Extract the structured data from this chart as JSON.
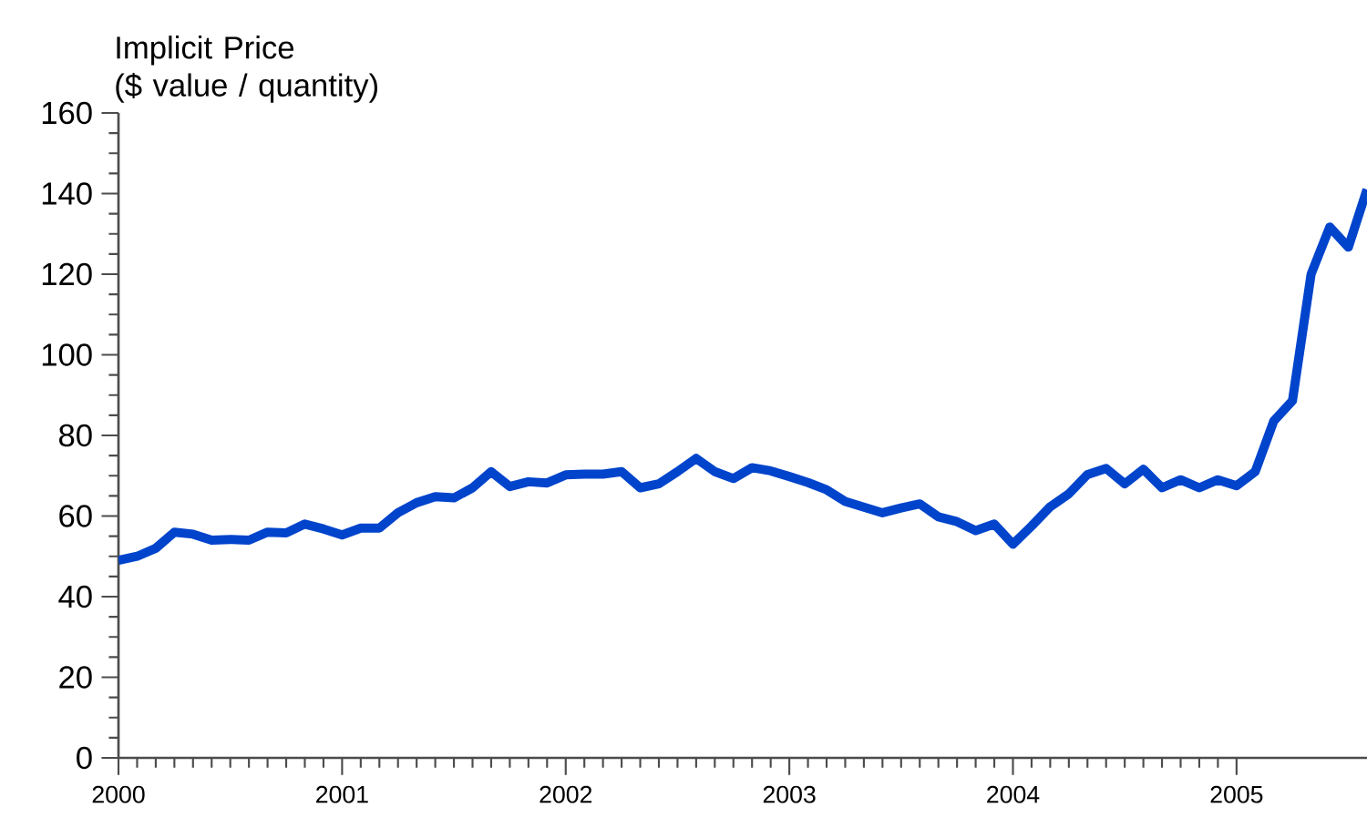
{
  "chart_data": {
    "type": "line",
    "ylabel": "Implicit Price\n($ value / quantity)",
    "x": [
      "2000-01",
      "2000-02",
      "2000-03",
      "2000-04",
      "2000-05",
      "2000-06",
      "2000-07",
      "2000-08",
      "2000-09",
      "2000-10",
      "2000-11",
      "2000-12",
      "2001-01",
      "2001-02",
      "2001-03",
      "2001-04",
      "2001-05",
      "2001-06",
      "2001-07",
      "2001-08",
      "2001-09",
      "2001-10",
      "2001-11",
      "2001-12",
      "2002-01",
      "2002-02",
      "2002-03",
      "2002-04",
      "2002-05",
      "2002-06",
      "2002-07",
      "2002-08",
      "2002-09",
      "2002-10",
      "2002-11",
      "2002-12",
      "2003-01",
      "2003-02",
      "2003-03",
      "2003-04",
      "2003-05",
      "2003-06",
      "2003-07",
      "2003-08",
      "2003-09",
      "2003-10",
      "2003-11",
      "2003-12",
      "2004-01",
      "2004-02",
      "2004-03",
      "2004-04",
      "2004-05",
      "2004-06",
      "2004-07",
      "2004-08",
      "2004-09",
      "2004-10",
      "2004-11",
      "2004-12",
      "2005-01",
      "2005-02",
      "2005-03",
      "2005-04",
      "2005-05",
      "2005-06",
      "2005-07",
      "2005-08"
    ],
    "series": [
      {
        "color": "#0044cc",
        "values": [
          49,
          50,
          52,
          56,
          55.5,
          54,
          54.2,
          54,
          56,
          55.8,
          58,
          56.8,
          55.3,
          57,
          57,
          60.8,
          63.3,
          64.8,
          64.5,
          67,
          71,
          67.3,
          68.5,
          68.2,
          70.2,
          70.4,
          70.4,
          71,
          67,
          68,
          71,
          74.3,
          71,
          69.3,
          72,
          71.2,
          69.8,
          68.3,
          66.5,
          63.6,
          62.2,
          60.8,
          62,
          63,
          59.8,
          58.6,
          56.4,
          58,
          53,
          57.5,
          62.3,
          65.5,
          70.3,
          71.8,
          68,
          71.6,
          67,
          69,
          67,
          69,
          67.5,
          71,
          83.6,
          88.6,
          120,
          131.7,
          126.7,
          141
        ]
      }
    ],
    "xlim": [
      "2000-01",
      "2005-08"
    ],
    "xticks": [
      "2000",
      "2001",
      "2002",
      "2003",
      "2004",
      "2005"
    ],
    "ylim": [
      0,
      160
    ],
    "yticks": [
      0,
      20,
      40,
      60,
      80,
      100,
      120,
      140,
      160
    ],
    "line_style": "solid"
  }
}
